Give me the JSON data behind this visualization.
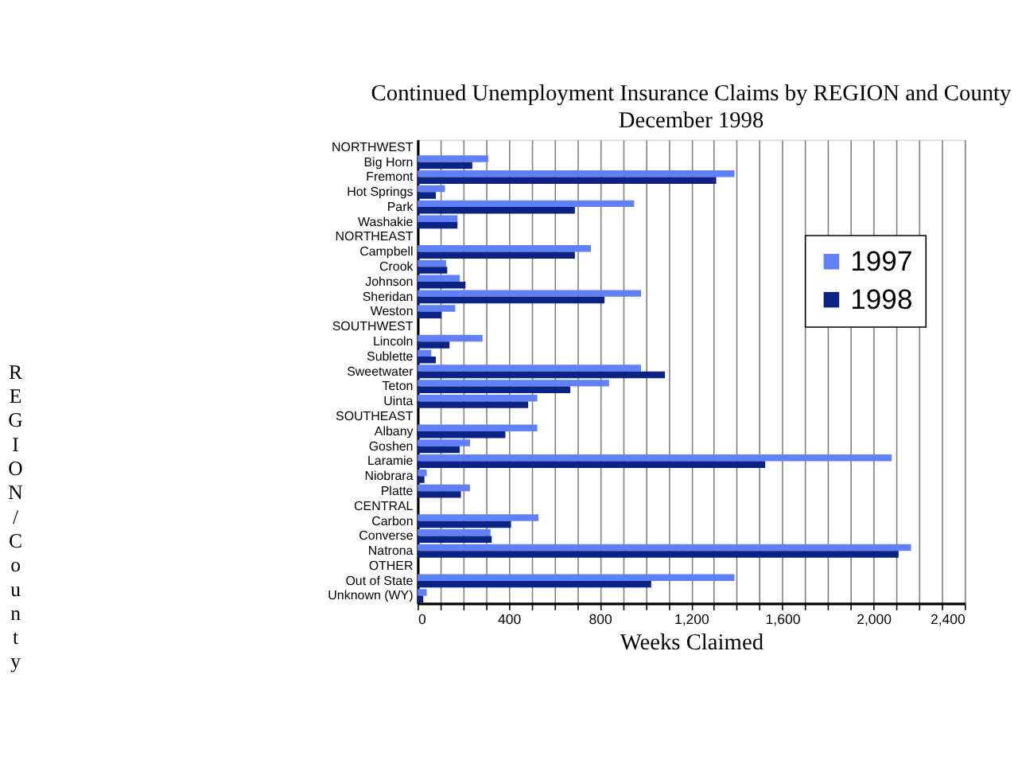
{
  "chart_data": {
    "type": "bar",
    "orientation": "horizontal",
    "title": "Continued Unemployment Insurance Claims by REGION and County",
    "subtitle": "December 1998",
    "xlabel": "Weeks Claimed",
    "ylabel": "REGION/County",
    "categories": [
      "NORTHWEST",
      "Big Horn",
      "Fremont",
      "Hot Springs",
      "Park",
      "Washakie",
      "NORTHEAST",
      "Campbell",
      "Crook",
      "Johnson",
      "Sheridan",
      "Weston",
      "SOUTHWEST",
      "Lincoln",
      "Sublette",
      "Sweetwater",
      "Teton",
      "Uinta",
      "SOUTHEAST",
      "Albany",
      "Goshen",
      "Laramie",
      "Niobrara",
      "Platte",
      "CENTRAL",
      "Carbon",
      "Converse",
      "Natrona",
      "OTHER",
      "Out of State",
      "Unknown (WY)"
    ],
    "series": [
      {
        "name": "1997",
        "color": "#5f80f6",
        "values": [
          null,
          310,
          1390,
          120,
          950,
          175,
          null,
          760,
          125,
          185,
          980,
          165,
          null,
          285,
          60,
          980,
          840,
          525,
          null,
          525,
          230,
          2080,
          40,
          230,
          null,
          530,
          320,
          2165,
          null,
          1390,
          40
        ]
      },
      {
        "name": "1998",
        "color": "#0a2384",
        "values": [
          null,
          240,
          1310,
          80,
          690,
          175,
          null,
          690,
          130,
          210,
          820,
          105,
          null,
          140,
          80,
          1085,
          670,
          485,
          null,
          385,
          185,
          1525,
          30,
          190,
          null,
          410,
          325,
          2110,
          null,
          1025,
          25
        ]
      }
    ],
    "xlim": [
      0,
      2400
    ],
    "xticks": [
      0,
      {
        "value": 100,
        "label": null
      },
      {
        "value": 200,
        "label": null
      },
      {
        "value": 300,
        "label": null
      },
      400,
      {
        "value": 500,
        "label": null
      },
      {
        "value": 600,
        "label": null
      },
      {
        "value": 700,
        "label": null
      },
      800,
      {
        "value": 900,
        "label": null
      },
      {
        "value": 1000,
        "label": null
      },
      {
        "value": 1100,
        "label": null
      },
      {
        "value": 1200,
        "label": "1,200"
      },
      {
        "value": 1300,
        "label": null
      },
      {
        "value": 1400,
        "label": null
      },
      {
        "value": 1500,
        "label": null
      },
      {
        "value": 1600,
        "label": "1,600"
      },
      {
        "value": 1700,
        "label": null
      },
      {
        "value": 1800,
        "label": null
      },
      {
        "value": 1900,
        "label": null
      },
      {
        "value": 2000,
        "label": "2,000"
      },
      {
        "value": 2100,
        "label": null
      },
      {
        "value": 2200,
        "label": null
      },
      {
        "value": 2300,
        "label": null
      },
      {
        "value": 2400,
        "label": "2,400"
      }
    ],
    "grid": "x",
    "legend": "right"
  }
}
